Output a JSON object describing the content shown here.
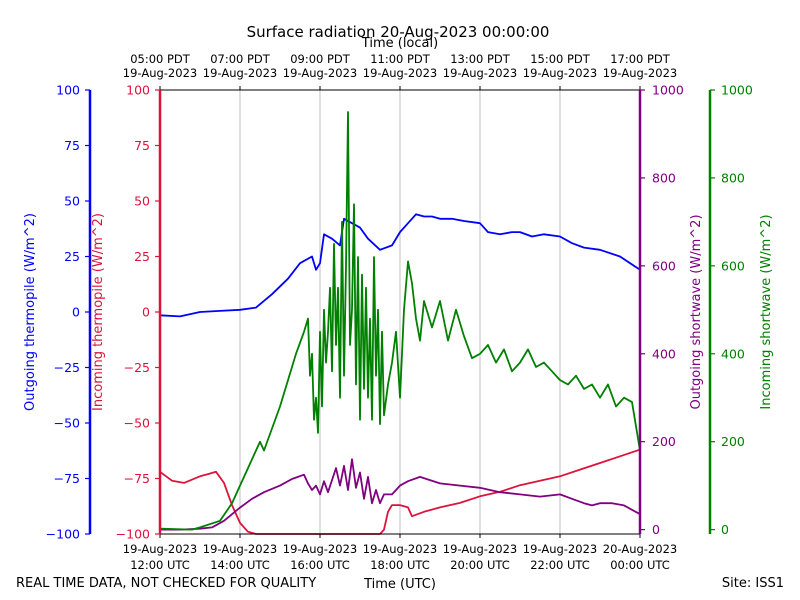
{
  "chart_data": {
    "type": "line",
    "title": "Surface radiation 20-Aug-2023 00:00:00",
    "xlabel_top": "Time (local)",
    "xlabel_bottom": "Time (UTC)",
    "footer_left": "REAL TIME DATA, NOT CHECKED FOR QUALITY",
    "footer_right": "Site: ISS1",
    "x_range_hours_utc": [
      12,
      24
    ],
    "x_ticks_hours": [
      12,
      14,
      16,
      18,
      20,
      22,
      24
    ],
    "bottom_tick_labels": [
      [
        "19-Aug-2023",
        "12:00 UTC"
      ],
      [
        "19-Aug-2023",
        "14:00 UTC"
      ],
      [
        "19-Aug-2023",
        "16:00 UTC"
      ],
      [
        "19-Aug-2023",
        "18:00 UTC"
      ],
      [
        "19-Aug-2023",
        "20:00 UTC"
      ],
      [
        "19-Aug-2023",
        "22:00 UTC"
      ],
      [
        "20-Aug-2023",
        "00:00 UTC"
      ]
    ],
    "top_tick_labels": [
      [
        "05:00 PDT",
        "19-Aug-2023"
      ],
      [
        "07:00 PDT",
        "19-Aug-2023"
      ],
      [
        "09:00 PDT",
        "19-Aug-2023"
      ],
      [
        "11:00 PDT",
        "19-Aug-2023"
      ],
      [
        "13:00 PDT",
        "19-Aug-2023"
      ],
      [
        "15:00 PDT",
        "19-Aug-2023"
      ],
      [
        "17:00 PDT",
        "19-Aug-2023"
      ]
    ],
    "axes": [
      {
        "id": "out_thermo",
        "label": "Outgoing thermopile (W/m^2)",
        "color": "#0000ff",
        "ylim": [
          -100,
          100
        ],
        "ticks": [
          -100,
          -75,
          -50,
          -25,
          0,
          25,
          50,
          75,
          100
        ]
      },
      {
        "id": "in_thermo",
        "label": "Incoming thermopile (W/m^2)",
        "color": "#dc143c",
        "ylim": [
          -100,
          100
        ],
        "ticks": [
          -100,
          -75,
          -50,
          -25,
          0,
          25,
          50,
          75,
          100
        ]
      },
      {
        "id": "out_sw",
        "label": "Outgoing shortwave (W/m^2)",
        "color": "#800080",
        "ylim": [
          -10,
          1000
        ],
        "ticks": [
          0,
          200,
          400,
          600,
          800,
          1000
        ]
      },
      {
        "id": "in_sw",
        "label": "Incoming shortwave (W/m^2)",
        "color": "#008000",
        "ylim": [
          -10,
          1000
        ],
        "ticks": [
          0,
          200,
          400,
          600,
          800,
          1000
        ]
      }
    ],
    "series": [
      {
        "name": "Outgoing thermopile",
        "axis": "out_thermo",
        "color": "#0000ff",
        "x": [
          12.0,
          12.5,
          13.0,
          13.5,
          14.0,
          14.4,
          14.8,
          15.2,
          15.5,
          15.8,
          15.9,
          16.0,
          16.1,
          16.3,
          16.5,
          16.6,
          16.8,
          17.0,
          17.2,
          17.5,
          17.8,
          18.0,
          18.2,
          18.4,
          18.6,
          18.8,
          19.0,
          19.3,
          19.6,
          20.0,
          20.2,
          20.5,
          20.8,
          21.0,
          21.3,
          21.6,
          22.0,
          22.3,
          22.6,
          23.0,
          23.5,
          24.0
        ],
        "y": [
          -1.5,
          -2.0,
          0.0,
          0.5,
          1.0,
          2.0,
          8.0,
          15.0,
          22.0,
          25.0,
          19.0,
          22.0,
          35.0,
          33.0,
          30.0,
          42.0,
          40.0,
          38.0,
          33.0,
          28.0,
          30.0,
          36.0,
          40.0,
          44.0,
          43.0,
          43.0,
          42.0,
          42.0,
          41.0,
          40.0,
          36.0,
          35.0,
          36.0,
          36.0,
          34.0,
          35.0,
          34.0,
          31.0,
          29.0,
          28.0,
          25.0,
          19.0
        ]
      },
      {
        "name": "Incoming thermopile",
        "axis": "in_thermo",
        "color": "#dc143c",
        "x": [
          12.0,
          12.3,
          12.6,
          13.0,
          13.2,
          13.4,
          13.6,
          13.8,
          14.0,
          14.2,
          14.4,
          17.5,
          17.6,
          17.7,
          17.8,
          18.0,
          18.2,
          18.3,
          18.6,
          19.0,
          19.5,
          20.0,
          20.5,
          21.0,
          21.5,
          22.0,
          22.5,
          23.0,
          23.5,
          24.0
        ],
        "y": [
          -72.0,
          -76.0,
          -77.0,
          -74.0,
          -73.0,
          -72.0,
          -77.0,
          -87.0,
          -95.0,
          -99.0,
          -100.0,
          -100.0,
          -98.0,
          -90.0,
          -87.0,
          -87.0,
          -88.0,
          -92.0,
          -90.0,
          -88.0,
          -86.0,
          -83.0,
          -81.0,
          -78.0,
          -76.0,
          -74.0,
          -71.0,
          -68.0,
          -65.0,
          -62.0
        ]
      },
      {
        "name": "Outgoing shortwave",
        "axis": "out_sw",
        "color": "#800080",
        "x": [
          12.0,
          12.5,
          13.0,
          13.3,
          13.6,
          14.0,
          14.3,
          14.6,
          15.0,
          15.3,
          15.6,
          15.7,
          15.8,
          15.9,
          16.0,
          16.1,
          16.2,
          16.4,
          16.5,
          16.6,
          16.7,
          16.8,
          16.9,
          17.0,
          17.1,
          17.2,
          17.3,
          17.4,
          17.5,
          17.6,
          17.8,
          18.0,
          18.2,
          18.5,
          19.0,
          19.5,
          20.0,
          20.5,
          21.0,
          21.5,
          22.0,
          22.3,
          22.6,
          22.8,
          23.0,
          23.3,
          23.6,
          23.8,
          24.0
        ],
        "y": [
          0,
          0,
          2,
          5,
          20,
          50,
          70,
          85,
          100,
          115,
          125,
          105,
          90,
          100,
          80,
          110,
          85,
          140,
          100,
          145,
          90,
          160,
          95,
          130,
          70,
          120,
          60,
          90,
          60,
          80,
          80,
          100,
          110,
          120,
          105,
          100,
          95,
          85,
          80,
          75,
          80,
          70,
          60,
          55,
          60,
          60,
          55,
          45,
          35
        ]
      },
      {
        "name": "Incoming shortwave",
        "axis": "in_sw",
        "color": "#008000",
        "x": [
          12.0,
          12.8,
          13.0,
          13.5,
          13.8,
          14.0,
          14.2,
          14.4,
          14.5,
          14.6,
          15.0,
          15.4,
          15.6,
          15.7,
          15.75,
          15.8,
          15.85,
          15.9,
          15.95,
          16.0,
          16.05,
          16.1,
          16.15,
          16.2,
          16.25,
          16.3,
          16.35,
          16.4,
          16.45,
          16.5,
          16.55,
          16.6,
          16.65,
          16.7,
          16.75,
          16.8,
          16.85,
          16.9,
          16.95,
          17.0,
          17.05,
          17.1,
          17.15,
          17.2,
          17.25,
          17.3,
          17.35,
          17.4,
          17.45,
          17.5,
          17.55,
          17.6,
          17.7,
          17.8,
          17.9,
          18.0,
          18.1,
          18.2,
          18.3,
          18.4,
          18.5,
          18.6,
          18.8,
          19.0,
          19.2,
          19.4,
          19.6,
          19.8,
          20.0,
          20.2,
          20.4,
          20.6,
          20.8,
          21.0,
          21.2,
          21.4,
          21.6,
          21.8,
          22.0,
          22.2,
          22.4,
          22.6,
          22.8,
          23.0,
          23.2,
          23.4,
          23.6,
          23.8,
          24.0
        ],
        "y": [
          2,
          0,
          5,
          20,
          60,
          100,
          140,
          180,
          200,
          180,
          280,
          400,
          450,
          480,
          350,
          400,
          250,
          300,
          220,
          450,
          280,
          500,
          380,
          450,
          550,
          360,
          650,
          420,
          550,
          300,
          700,
          350,
          600,
          950,
          420,
          500,
          740,
          330,
          620,
          250,
          580,
          320,
          550,
          300,
          480,
          250,
          620,
          350,
          500,
          240,
          450,
          260,
          330,
          380,
          450,
          300,
          500,
          610,
          560,
          480,
          430,
          520,
          460,
          520,
          430,
          500,
          440,
          390,
          400,
          420,
          380,
          410,
          360,
          380,
          410,
          370,
          380,
          360,
          340,
          330,
          350,
          320,
          330,
          300,
          330,
          280,
          300,
          290,
          180
        ]
      }
    ]
  }
}
